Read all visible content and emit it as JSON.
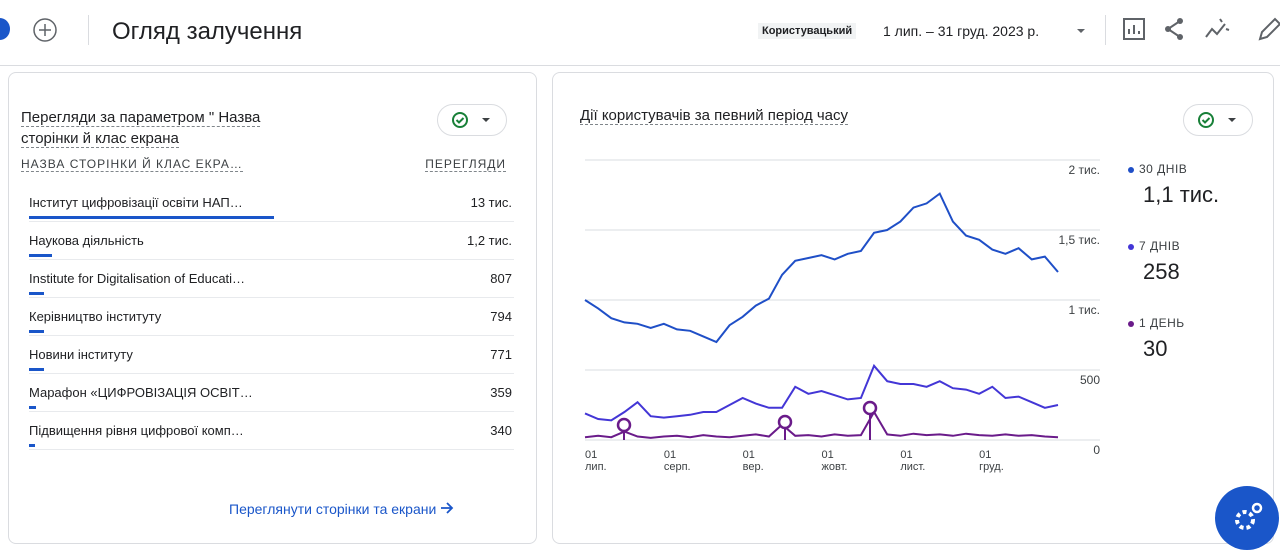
{
  "header": {
    "title": "Огляд залучення",
    "comparison": "Користувацький",
    "date_range": "1 лип. – 31 груд. 2023 р."
  },
  "table_card": {
    "title": "Перегляди за параметром \" Назва сторінки й клас екрана",
    "columns": [
      "НАЗВА СТОРІНКИ Й КЛАС ЕКРА…",
      "ПЕРЕГЛЯДИ"
    ],
    "rows": [
      {
        "name": "Інститут цифровізації освіти НАП…",
        "views": 13000,
        "views_label": "13 тис."
      },
      {
        "name": "Наукова діяльність",
        "views": 1200,
        "views_label": "1,2 тис."
      },
      {
        "name": "Institute for Digitalisation of Educati…",
        "views": 807
      },
      {
        "name": "Керівництво інституту",
        "views": 794
      },
      {
        "name": "Новини інституту",
        "views": 771
      },
      {
        "name": "Марафон «ЦИФРОВІЗАЦІЯ ОСВІТ…",
        "views": 359
      },
      {
        "name": "Підвищення рівня цифрової комп…",
        "views": 340
      }
    ],
    "link": "Переглянути сторінки та екрани"
  },
  "chart_data": {
    "type": "line",
    "title": "Дії користувачів за певний період часу",
    "categories": [
      "01 лип.",
      null,
      null,
      null,
      null,
      null,
      "01 серп.",
      null,
      null,
      null,
      null,
      null,
      "01 вер.",
      null,
      null,
      null,
      null,
      null,
      "01 жовт.",
      null,
      null,
      null,
      null,
      null,
      "01 лист.",
      null,
      null,
      null,
      null,
      null,
      "01 груд.",
      null,
      null,
      null,
      null,
      null,
      null
    ],
    "ylim": [
      0,
      2000
    ],
    "yticks": [
      {
        "value": 2000,
        "label": "2 тис."
      },
      {
        "value": 1500,
        "label": "1,5 тис."
      },
      {
        "value": 1000,
        "label": "1 тис."
      },
      500,
      0
    ],
    "grid": true,
    "series": [
      {
        "name": "30 ДНІВ",
        "color": "#1f4fc7",
        "summary": "1,1 тис.",
        "values": [
          1000,
          940,
          870,
          840,
          830,
          800,
          830,
          790,
          780,
          740,
          700,
          820,
          880,
          960,
          1010,
          1180,
          1280,
          1300,
          1320,
          1290,
          1330,
          1350,
          1480,
          1500,
          1560,
          1660,
          1690,
          1760,
          1560,
          1460,
          1430,
          1360,
          1330,
          1370,
          1290,
          1310,
          1200
        ]
      },
      {
        "name": "7 ДНІВ",
        "color": "#4336d6",
        "summary": "258",
        "values": [
          190,
          150,
          140,
          200,
          270,
          170,
          160,
          170,
          180,
          200,
          200,
          250,
          300,
          260,
          230,
          230,
          380,
          330,
          350,
          320,
          290,
          300,
          530,
          420,
          400,
          400,
          380,
          420,
          370,
          360,
          330,
          380,
          300,
          310,
          270,
          230,
          250
        ]
      },
      {
        "name": "1 ДЕНЬ",
        "color": "#6a1b8a",
        "summary": "30",
        "values": [
          20,
          30,
          20,
          60,
          25,
          15,
          25,
          30,
          20,
          35,
          25,
          20,
          30,
          40,
          25,
          110,
          30,
          35,
          25,
          40,
          30,
          35,
          200,
          40,
          30,
          45,
          35,
          40,
          30,
          45,
          35,
          30,
          40,
          30,
          35,
          25,
          20
        ]
      }
    ]
  }
}
